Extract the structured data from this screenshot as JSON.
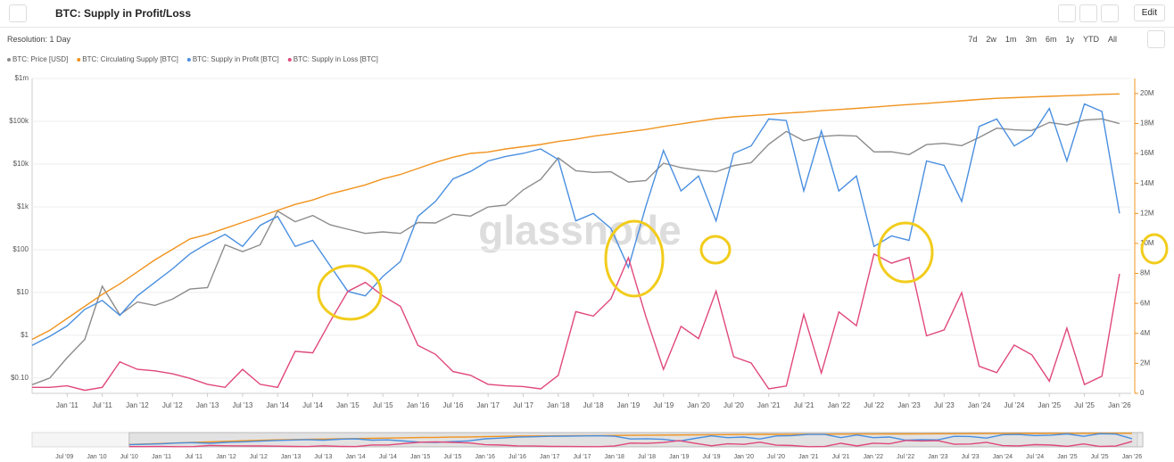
{
  "header": {
    "title": "BTC: Supply in Profit/Loss",
    "resolution": "Resolution: 1 Day",
    "edit": "Edit",
    "range_buttons": [
      "7d",
      "2w",
      "1m",
      "3m",
      "6m",
      "1y",
      "YTD",
      "All"
    ]
  },
  "chart_data": {
    "type": "line",
    "watermark": "glassnode",
    "yscale": "log",
    "grid": true,
    "x": [
      "2010-07",
      "2010-10",
      "2011-01",
      "2011-04",
      "2011-07",
      "2011-10",
      "2012-01",
      "2012-04",
      "2012-07",
      "2012-10",
      "2013-01",
      "2013-04",
      "2013-07",
      "2013-10",
      "2014-01",
      "2014-04",
      "2014-07",
      "2014-10",
      "2015-01",
      "2015-04",
      "2015-07",
      "2015-10",
      "2016-01",
      "2016-04",
      "2016-07",
      "2016-10",
      "2017-01",
      "2017-04",
      "2017-07",
      "2017-10",
      "2018-01",
      "2018-04",
      "2018-07",
      "2018-10",
      "2019-01",
      "2019-04",
      "2019-07",
      "2019-10",
      "2020-01",
      "2020-04",
      "2020-07",
      "2020-10",
      "2021-01",
      "2021-04",
      "2021-07",
      "2021-10",
      "2022-01",
      "2022-04",
      "2022-07",
      "2022-10",
      "2023-01",
      "2023-04",
      "2023-07",
      "2023-10",
      "2024-01",
      "2024-04",
      "2024-07",
      "2024-10",
      "2025-01",
      "2025-04",
      "2025-07",
      "2025-10",
      "2026-01"
    ],
    "xlim": [
      "2010-07",
      "2026-03"
    ],
    "xticks": [
      {
        "value": "2011-01",
        "label": "Jan '11"
      },
      {
        "value": "2011-07",
        "label": "Jul '11"
      },
      {
        "value": "2012-01",
        "label": "Jan '12"
      },
      {
        "value": "2012-07",
        "label": "Jul '12"
      },
      {
        "value": "2013-01",
        "label": "Jan '13"
      },
      {
        "value": "2013-07",
        "label": "Jul '13"
      },
      {
        "value": "2014-01",
        "label": "Jan '14"
      },
      {
        "value": "2014-07",
        "label": "Jul '14"
      },
      {
        "value": "2015-01",
        "label": "Jan '15"
      },
      {
        "value": "2015-07",
        "label": "Jul '15"
      },
      {
        "value": "2016-01",
        "label": "Jan '16"
      },
      {
        "value": "2016-07",
        "label": "Jul '16"
      },
      {
        "value": "2017-01",
        "label": "Jan '17"
      },
      {
        "value": "2017-07",
        "label": "Jul '17"
      },
      {
        "value": "2018-01",
        "label": "Jan '18"
      },
      {
        "value": "2018-07",
        "label": "Jul '18"
      },
      {
        "value": "2019-01",
        "label": "Jan '19"
      },
      {
        "value": "2019-07",
        "label": "Jul '19"
      },
      {
        "value": "2020-01",
        "label": "Jan '20"
      },
      {
        "value": "2020-07",
        "label": "Jul '20"
      },
      {
        "value": "2021-01",
        "label": "Jan '21"
      },
      {
        "value": "2021-07",
        "label": "Jul '21"
      },
      {
        "value": "2022-01",
        "label": "Jan '22"
      },
      {
        "value": "2022-07",
        "label": "Jul '22"
      },
      {
        "value": "2023-01",
        "label": "Jan '23"
      },
      {
        "value": "2023-07",
        "label": "Jul '23"
      },
      {
        "value": "2024-01",
        "label": "Jan '24"
      },
      {
        "value": "2024-07",
        "label": "Jul '24"
      },
      {
        "value": "2025-01",
        "label": "Jan '25"
      },
      {
        "value": "2025-07",
        "label": "Jul '25"
      },
      {
        "value": "2026-01",
        "label": "Jan '26"
      }
    ],
    "ylim": [
      0.044,
      1000000
    ],
    "yticks": [
      {
        "value": 1000000,
        "label": "$1m"
      },
      {
        "value": 100000,
        "label": "$100k"
      },
      {
        "value": 10000,
        "label": "$10k"
      },
      {
        "value": 1000,
        "label": "$1k"
      },
      {
        "value": 100,
        "label": "$100"
      },
      {
        "value": 10,
        "label": "$10"
      },
      {
        "value": 1,
        "label": "$1"
      },
      {
        "value": 0.1,
        "label": "$0.10"
      }
    ],
    "y2lim": [
      0,
      21000000
    ],
    "y2ticks": [
      {
        "value": 20000000,
        "label": "20M"
      },
      {
        "value": 18000000,
        "label": "18M"
      },
      {
        "value": 16000000,
        "label": "16M"
      },
      {
        "value": 14000000,
        "label": "14M"
      },
      {
        "value": 12000000,
        "label": "12M"
      },
      {
        "value": 10000000,
        "label": "10M"
      },
      {
        "value": 8000000,
        "label": "8M"
      },
      {
        "value": 6000000,
        "label": "6M"
      },
      {
        "value": 4000000,
        "label": "4M"
      },
      {
        "value": 2000000,
        "label": "2M"
      },
      0
    ],
    "series": [
      {
        "name": "BTC: Price [USD]",
        "color": "#8c8c8c",
        "axis": "y",
        "values": [
          0.07,
          0.1,
          0.3,
          0.8,
          14,
          3,
          6,
          5,
          7,
          12,
          13,
          130,
          90,
          130,
          800,
          450,
          630,
          380,
          300,
          240,
          260,
          240,
          430,
          420,
          670,
          610,
          1000,
          1100,
          2500,
          4400,
          14000,
          7000,
          6400,
          6600,
          3800,
          4100,
          10500,
          8300,
          7200,
          6600,
          9200,
          10800,
          29000,
          58000,
          35000,
          44000,
          47000,
          45000,
          19300,
          19400,
          16600,
          28500,
          30500,
          27000,
          42000,
          69000,
          63000,
          61000,
          94000,
          82000,
          107000,
          114000,
          88000
        ]
      },
      {
        "name": "BTC: Circulating Supply [BTC]",
        "color": "#f0931e",
        "axis": "y2",
        "values": [
          3600000,
          4200000,
          5000000,
          5800000,
          6600000,
          7300000,
          8100000,
          8900000,
          9600000,
          10300000,
          10600000,
          11000000,
          11400000,
          11800000,
          12200000,
          12600000,
          12900000,
          13300000,
          13600000,
          13900000,
          14300000,
          14600000,
          15000000,
          15400000,
          15750000,
          16000000,
          16100000,
          16300000,
          16450000,
          16600000,
          16800000,
          16950000,
          17150000,
          17300000,
          17450000,
          17600000,
          17800000,
          17970000,
          18150000,
          18320000,
          18440000,
          18520000,
          18600000,
          18690000,
          18760000,
          18850000,
          18930000,
          19010000,
          19090000,
          19180000,
          19260000,
          19340000,
          19430000,
          19510000,
          19600000,
          19680000,
          19720000,
          19770000,
          19810000,
          19850000,
          19890000,
          19940000,
          19970000
        ]
      },
      {
        "name": "BTC: Supply in Profit [BTC]",
        "color": "#4a8fe0",
        "axis": "y2",
        "values": [
          3200000,
          3800000,
          4500000,
          5600000,
          6200000,
          5200000,
          6500000,
          7400000,
          8300000,
          9300000,
          10000000,
          10600000,
          9800000,
          11200000,
          11800000,
          9800000,
          10200000,
          8500000,
          6800000,
          6500000,
          7800000,
          8800000,
          11800000,
          12800000,
          14300000,
          14800000,
          15500000,
          15800000,
          16000000,
          16300000,
          15600000,
          11500000,
          12000000,
          11000000,
          8400000,
          12500000,
          16200000,
          13500000,
          14500000,
          11500000,
          16000000,
          16500000,
          18300000,
          18200000,
          13500000,
          17500000,
          13500000,
          14500000,
          9800000,
          10500000,
          10200000,
          15500000,
          15200000,
          12800000,
          17800000,
          18300000,
          16500000,
          17200000,
          19000000,
          15500000,
          19300000,
          18800000,
          12000000
        ]
      },
      {
        "name": "BTC: Supply in Loss [BTC]",
        "color": "#e0487a",
        "axis": "y2",
        "values": [
          400000,
          400000,
          500000,
          200000,
          400000,
          2100000,
          1600000,
          1500000,
          1300000,
          1000000,
          600000,
          400000,
          1600000,
          600000,
          400000,
          2800000,
          2700000,
          4800000,
          6800000,
          7400000,
          6500000,
          5800000,
          3200000,
          2600000,
          1450000,
          1200000,
          600000,
          500000,
          450000,
          300000,
          1200000,
          5450000,
          5150000,
          6300000,
          9050000,
          5100000,
          1600000,
          4470000,
          3650000,
          6820000,
          2440000,
          2020000,
          300000,
          490000,
          5260000,
          1350000,
          5430000,
          4510000,
          9290000,
          8680000,
          9060000,
          3840000,
          4230000,
          6710000,
          1800000,
          1380000,
          3220000,
          2570000,
          810000,
          4350000,
          590000,
          1140000,
          7970000
        ]
      }
    ]
  },
  "navigator": {
    "xlim": [
      "2009-01",
      "2026-02"
    ],
    "xticks": [
      {
        "value": "2009-07",
        "label": "Jul '09"
      },
      {
        "value": "2010-01",
        "label": "Jan '10"
      },
      {
        "value": "2010-07",
        "label": "Jul '10"
      },
      {
        "value": "2011-01",
        "label": "Jan '11"
      },
      {
        "value": "2011-07",
        "label": "Jul '11"
      },
      {
        "value": "2012-01",
        "label": "Jan '12"
      },
      {
        "value": "2012-07",
        "label": "Jul '12"
      },
      {
        "value": "2013-01",
        "label": "Jan '13"
      },
      {
        "value": "2013-07",
        "label": "Jul '13"
      },
      {
        "value": "2014-01",
        "label": "Jan '14"
      },
      {
        "value": "2014-07",
        "label": "Jul '14"
      },
      {
        "value": "2015-01",
        "label": "Jan '15"
      },
      {
        "value": "2015-07",
        "label": "Jul '15"
      },
      {
        "value": "2016-01",
        "label": "Jan '16"
      },
      {
        "value": "2016-07",
        "label": "Jul '16"
      },
      {
        "value": "2017-01",
        "label": "Jan '17"
      },
      {
        "value": "2017-07",
        "label": "Jul '17"
      },
      {
        "value": "2018-01",
        "label": "Jan '18"
      },
      {
        "value": "2018-07",
        "label": "Jul '18"
      },
      {
        "value": "2019-01",
        "label": "Jan '19"
      },
      {
        "value": "2019-07",
        "label": "Jul '19"
      },
      {
        "value": "2020-01",
        "label": "Jan '20"
      },
      {
        "value": "2020-07",
        "label": "Jul '20"
      },
      {
        "value": "2021-01",
        "label": "Jan '21"
      },
      {
        "value": "2021-07",
        "label": "Jul '21"
      },
      {
        "value": "2022-01",
        "label": "Jan '22"
      },
      {
        "value": "2022-07",
        "label": "Jul '22"
      },
      {
        "value": "2023-01",
        "label": "Jan '23"
      },
      {
        "value": "2023-07",
        "label": "Jul '23"
      },
      {
        "value": "2024-01",
        "label": "Jan '24"
      },
      {
        "value": "2024-07",
        "label": "Jul '24"
      },
      {
        "value": "2025-01",
        "label": "Jan '25"
      },
      {
        "value": "2025-07",
        "label": "Jul '25"
      },
      {
        "value": "2026-01",
        "label": "Jan '26"
      }
    ]
  }
}
